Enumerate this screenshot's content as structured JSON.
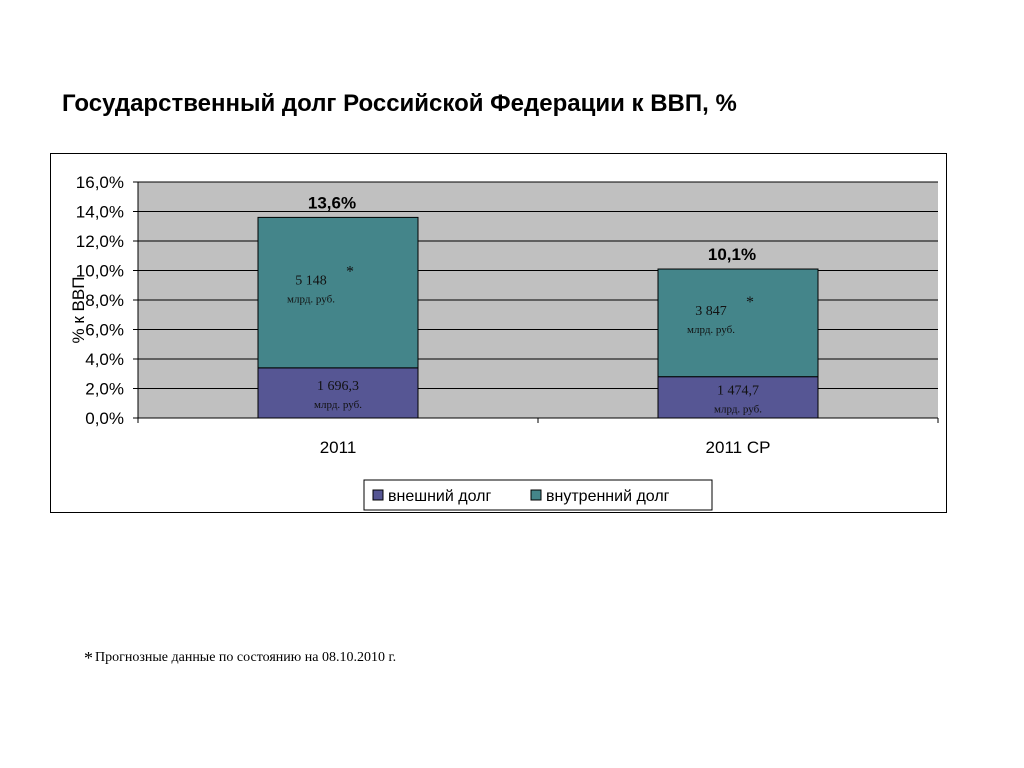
{
  "title": "Государственный долг Российской Федерации к ВВП, %",
  "footnote": {
    "star": "*",
    "text": "Прогнозные данные по состоянию на 08.10.2010 г."
  },
  "colors": {
    "external": "#565694",
    "internal": "#44858a",
    "plot_bg": "#c0c0c0",
    "grid": "#000000"
  },
  "chart_data": {
    "type": "bar",
    "stacked": true,
    "title": "",
    "xlabel": "",
    "ylabel": "% к ВВП",
    "ylim": [
      0,
      16
    ],
    "yticks": [
      "0,0%",
      "2,0%",
      "4,0%",
      "6,0%",
      "8,0%",
      "10,0%",
      "12,0%",
      "14,0%",
      "16,0%"
    ],
    "ytick_values": [
      0,
      2,
      4,
      6,
      8,
      10,
      12,
      14,
      16
    ],
    "categories": [
      "2011",
      "2011 СР"
    ],
    "series": [
      {
        "name": "внешний долг",
        "values": [
          3.4,
          2.8
        ],
        "color": "#565694"
      },
      {
        "name": "внутренний долг",
        "values": [
          10.2,
          7.3
        ],
        "color": "#44858a"
      }
    ],
    "totals": [
      "13,6%",
      "10,1%"
    ],
    "segment_labels": [
      [
        {
          "value": "1 696,3",
          "unit": "млрд. руб.",
          "star": ""
        },
        {
          "value": "5 148",
          "unit": "млрд. руб.",
          "star": "*"
        }
      ],
      [
        {
          "value": "1 474,7",
          "unit": "млрд. руб.",
          "star": ""
        },
        {
          "value": "3 847",
          "unit": "млрд. руб.",
          "star": "*"
        }
      ]
    ],
    "legend": {
      "position": "bottom",
      "items": [
        "внешний долг",
        "внутренний долг"
      ]
    },
    "grid": true
  }
}
